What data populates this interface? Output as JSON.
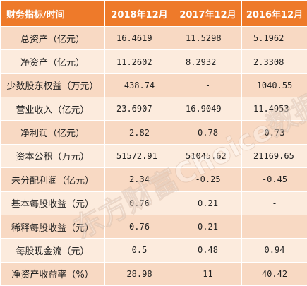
{
  "table": {
    "headers": [
      "财务指标/时间",
      "2018年12月",
      "2017年12月",
      "2016年12月"
    ],
    "rows": [
      {
        "label": "总资产（亿元）",
        "v2018": "16.4619",
        "v2017": "11.5298",
        "v2016": "5.1962"
      },
      {
        "label": "净资产（亿元）",
        "v2018": "11.2602",
        "v2017": "8.2932",
        "v2016": "2.3308"
      },
      {
        "label": "少数股东权益（万元）",
        "v2018": "438.74",
        "v2017": "-",
        "v2016": "1040.55"
      },
      {
        "label": "营业收入（亿元）",
        "v2018": "23.6907",
        "v2017": "16.9049",
        "v2016": "11.4953"
      },
      {
        "label": "净利润（亿元）",
        "v2018": "2.82",
        "v2017": "0.78",
        "v2016": "0.73"
      },
      {
        "label": "资本公积（万元）",
        "v2018": "51572.91",
        "v2017": "51045.62",
        "v2016": "21169.65"
      },
      {
        "label": "未分配利润（亿元）",
        "v2018": "2.34",
        "v2017": "-0.25",
        "v2016": "-0.45"
      },
      {
        "label": "基本每股收益（元）",
        "v2018": "0.76",
        "v2017": "0.21",
        "v2016": "-"
      },
      {
        "label": "稀释每股收益（元）",
        "v2018": "0.76",
        "v2017": "0.21",
        "v2016": "-"
      },
      {
        "label": "每股现金流（元）",
        "v2018": "0.5",
        "v2017": "0.48",
        "v2016": "0.94"
      },
      {
        "label": "净资产收益率（%）",
        "v2018": "28.98",
        "v2017": "11",
        "v2016": "40.42"
      }
    ]
  },
  "watermark": {
    "text": "东方财富Choice数据"
  },
  "colors": {
    "header_bg": "#ee7a2a",
    "row_odd": "#f8d9c3",
    "row_even": "#fcebdd"
  }
}
